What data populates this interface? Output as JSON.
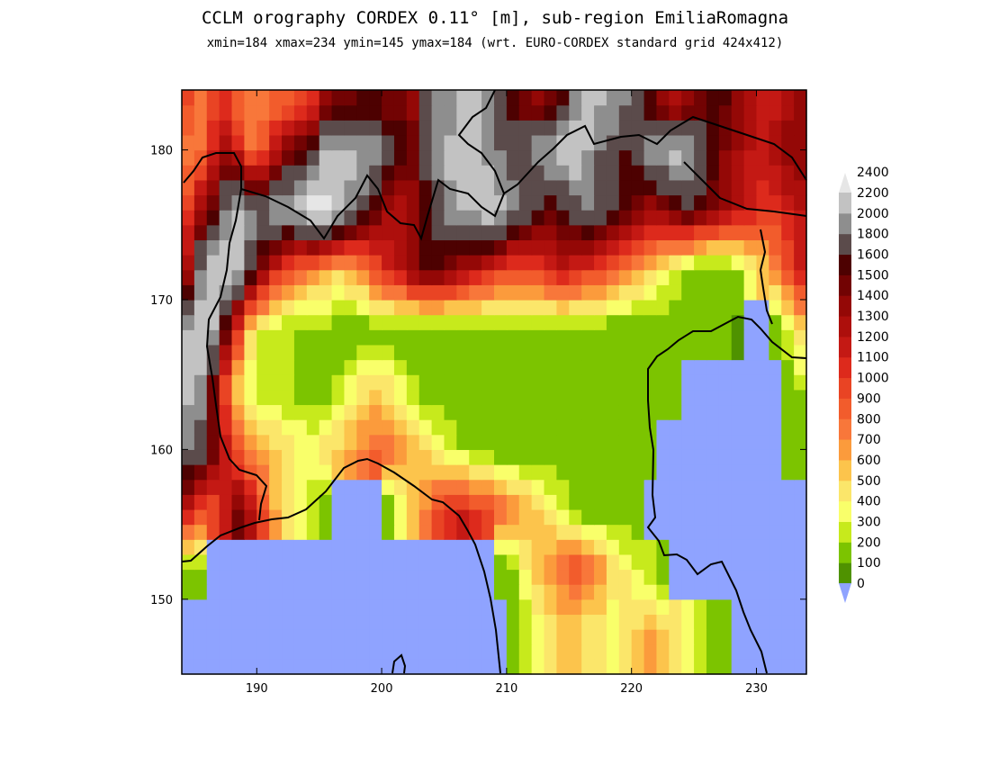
{
  "title": "CCLM orography CORDEX 0.11° [m], sub-region EmiliaRomagna",
  "subtitle": "xmin=184 xmax=234 ymin=145 ymax=184 (wrt. EURO-CORDEX standard grid 424x412)",
  "chart_data": {
    "type": "heatmap",
    "title": "CCLM orography CORDEX 0.11° [m], sub-region EmiliaRomagna",
    "xlim": [
      184,
      234
    ],
    "ylim": [
      145,
      184
    ],
    "x_ticks": [
      190,
      200,
      210,
      220,
      230
    ],
    "y_ticks": [
      150,
      160,
      170,
      180
    ],
    "colorbar": {
      "levels": [
        0,
        100,
        200,
        300,
        400,
        500,
        600,
        700,
        800,
        900,
        1000,
        1100,
        1200,
        1300,
        1400,
        1500,
        1600,
        1800,
        2000,
        2200,
        2400
      ],
      "colors": [
        "#8fa3ff",
        "#4f9200",
        "#7cc400",
        "#c7ea1c",
        "#f9ff6a",
        "#fbe66a",
        "#fcc44c",
        "#fb9b3c",
        "#f8773a",
        "#f25c2c",
        "#e94424",
        "#dd2a1c",
        "#c41914",
        "#ad0f0c",
        "#940806",
        "#720303",
        "#4d0101",
        "#5b4b4b",
        "#8e8e8e",
        "#c2c2c2",
        "#e6e6e6"
      ]
    },
    "summary_rows": [
      {
        "y": 183,
        "values": [
          900,
          700,
          900,
          1000,
          800,
          700,
          700,
          800,
          800,
          900,
          1000,
          1300,
          1400,
          1400,
          1500,
          1500,
          1400,
          1400,
          1300,
          1600,
          1800,
          1800,
          2000,
          2000,
          1800,
          1700,
          1500,
          1400,
          1300,
          1400,
          1500,
          1800,
          2000,
          2000,
          1900,
          1800,
          1600,
          1500,
          1300,
          1200,
          1300,
          1400,
          1500,
          1500,
          1300,
          1200,
          1100,
          1100,
          1200,
          1300
        ]
      },
      {
        "y": 180,
        "values": [
          700,
          800,
          1100,
          1300,
          1100,
          800,
          900,
          1200,
          1400,
          1500,
          1700,
          2000,
          2100,
          2100,
          2000,
          1900,
          1700,
          1600,
          1500,
          1700,
          1900,
          2100,
          2200,
          2100,
          1900,
          1800,
          1700,
          1800,
          1900,
          2000,
          2100,
          2200,
          2000,
          1800,
          1700,
          1600,
          1700,
          1900,
          2000,
          2100,
          2000,
          1800,
          1600,
          1400,
          1300,
          1200,
          1200,
          1300,
          1400,
          1400
        ]
      },
      {
        "y": 176,
        "values": [
          1000,
          1300,
          1500,
          1800,
          2000,
          1900,
          1800,
          1900,
          2000,
          2100,
          2300,
          2300,
          2100,
          1900,
          1700,
          1500,
          1300,
          1200,
          1300,
          1500,
          1700,
          1900,
          2000,
          2100,
          2200,
          2100,
          1900,
          1700,
          1600,
          1500,
          1600,
          1700,
          1800,
          1700,
          1600,
          1500,
          1400,
          1300,
          1400,
          1500,
          1600,
          1500,
          1400,
          1300,
          1200,
          1100,
          1000,
          1000,
          1100,
          1200
        ]
      },
      {
        "y": 172,
        "values": [
          1300,
          1800,
          2100,
          2200,
          2000,
          1700,
          1400,
          1100,
          900,
          800,
          700,
          600,
          500,
          600,
          700,
          900,
          1100,
          1200,
          1400,
          1500,
          1500,
          1400,
          1300,
          1200,
          1100,
          1000,
          900,
          900,
          1000,
          1100,
          1200,
          1100,
          1000,
          900,
          800,
          700,
          600,
          500,
          400,
          300,
          200,
          100,
          100,
          100,
          200,
          300,
          500,
          700,
          900,
          1100
        ]
      },
      {
        "y": 168,
        "values": [
          2000,
          2200,
          2000,
          1500,
          1000,
          500,
          300,
          200,
          200,
          150,
          150,
          150,
          100,
          100,
          100,
          100,
          100,
          100,
          100,
          100,
          100,
          100,
          100,
          100,
          100,
          100,
          100,
          100,
          100,
          100,
          100,
          100,
          100,
          100,
          100,
          100,
          100,
          100,
          100,
          100,
          100,
          100,
          100,
          100,
          50,
          0,
          0,
          100,
          300,
          500
        ]
      },
      {
        "y": 164,
        "values": [
          2100,
          1900,
          1400,
          900,
          500,
          300,
          250,
          250,
          200,
          150,
          100,
          150,
          250,
          350,
          450,
          500,
          450,
          350,
          250,
          150,
          100,
          100,
          100,
          100,
          100,
          100,
          100,
          100,
          100,
          100,
          100,
          100,
          100,
          100,
          100,
          100,
          100,
          100,
          100,
          100,
          0,
          0,
          0,
          0,
          0,
          0,
          0,
          0,
          100,
          200
        ]
      },
      {
        "y": 160,
        "values": [
          1800,
          1700,
          1500,
          1200,
          900,
          700,
          600,
          500,
          450,
          400,
          400,
          450,
          500,
          600,
          700,
          800,
          800,
          700,
          600,
          500,
          400,
          300,
          200,
          150,
          100,
          100,
          100,
          100,
          100,
          100,
          100,
          100,
          100,
          100,
          100,
          100,
          100,
          100,
          0,
          0,
          0,
          0,
          0,
          0,
          0,
          0,
          0,
          0,
          100,
          100
        ]
      },
      {
        "y": 156,
        "values": [
          1200,
          1000,
          900,
          1100,
          1400,
          1200,
          900,
          600,
          400,
          300,
          200,
          100,
          0,
          0,
          0,
          0,
          100,
          300,
          500,
          700,
          900,
          1000,
          1100,
          1000,
          900,
          800,
          700,
          600,
          500,
          400,
          300,
          200,
          100,
          100,
          100,
          100,
          100,
          0,
          0,
          0,
          0,
          0,
          0,
          0,
          0,
          0,
          0,
          0,
          0,
          0
        ]
      },
      {
        "y": 152,
        "values": [
          100,
          100,
          0,
          0,
          0,
          0,
          0,
          0,
          0,
          0,
          0,
          0,
          0,
          0,
          0,
          0,
          0,
          0,
          0,
          0,
          0,
          0,
          0,
          0,
          0,
          100,
          200,
          400,
          600,
          700,
          800,
          900,
          800,
          700,
          500,
          400,
          300,
          200,
          100,
          0,
          0,
          0,
          0,
          0,
          0,
          0,
          0,
          0,
          0,
          0
        ]
      },
      {
        "y": 148,
        "values": [
          0,
          0,
          0,
          0,
          0,
          0,
          0,
          0,
          0,
          0,
          0,
          0,
          0,
          0,
          0,
          0,
          0,
          0,
          0,
          0,
          0,
          0,
          0,
          0,
          0,
          0,
          100,
          200,
          300,
          400,
          500,
          500,
          400,
          400,
          300,
          400,
          500,
          600,
          500,
          400,
          300,
          200,
          100,
          100,
          0,
          0,
          0,
          0,
          0,
          0
        ]
      }
    ]
  }
}
